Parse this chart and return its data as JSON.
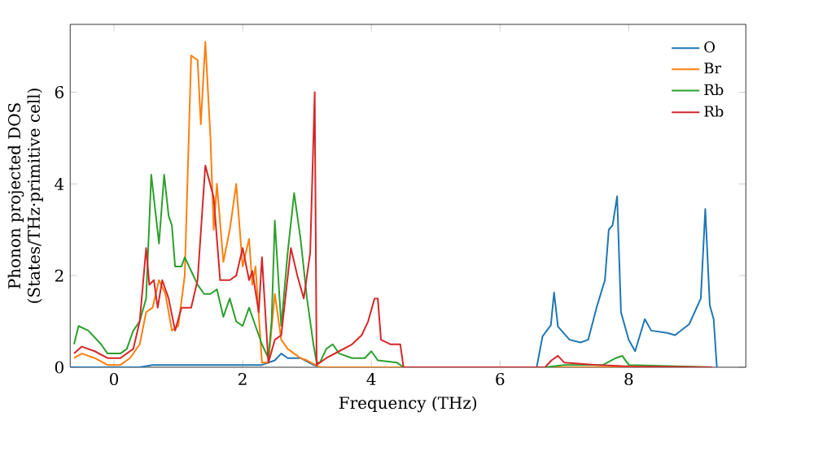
{
  "chart_data": {
    "type": "line",
    "xlabel": "Frequency (THz)",
    "ylabel": "Phonon projected DOS\n(States/THz·primitive cell)",
    "xlim": [
      -0.68,
      9.82
    ],
    "ylim": [
      0,
      7.48
    ],
    "xticks": [
      0,
      2,
      4,
      6,
      8
    ],
    "yticks": [
      0,
      2,
      4,
      6
    ],
    "legend": "top right",
    "grid": false,
    "series": [
      {
        "name": "O",
        "color": "#1f77b4",
        "x": [
          -0.68,
          0.4,
          0.6,
          1.5,
          2.3,
          2.5,
          2.6,
          2.7,
          2.9,
          3.1,
          3.2,
          4.5,
          6.57,
          6.66,
          6.79,
          6.84,
          6.9,
          7.08,
          7.25,
          7.37,
          7.5,
          7.63,
          7.69,
          7.75,
          7.82,
          7.88,
          8.0,
          8.1,
          8.25,
          8.35,
          8.6,
          8.72,
          8.94,
          9.12,
          9.19,
          9.26,
          9.32,
          9.37
        ],
        "values": [
          0,
          0,
          0.05,
          0.05,
          0.05,
          0.15,
          0.3,
          0.2,
          0.2,
          0.05,
          0,
          0,
          0,
          0.67,
          0.92,
          1.63,
          0.89,
          0.6,
          0.54,
          0.6,
          1.3,
          1.9,
          3.0,
          3.1,
          3.73,
          1.2,
          0.6,
          0.35,
          1.05,
          0.8,
          0.75,
          0.7,
          0.94,
          1.5,
          3.45,
          1.35,
          1.05,
          0
        ]
      },
      {
        "name": "Br",
        "color": "#ff7f0e",
        "x": [
          -0.62,
          -0.5,
          -0.3,
          -0.1,
          0.1,
          0.25,
          0.4,
          0.5,
          0.6,
          0.7,
          0.8,
          0.9,
          1.0,
          1.1,
          1.2,
          1.3,
          1.35,
          1.42,
          1.5,
          1.55,
          1.6,
          1.7,
          1.8,
          1.9,
          2.0,
          2.1,
          2.15,
          2.2,
          2.3,
          2.4,
          2.5,
          2.6,
          2.7,
          2.8,
          2.9,
          3.0,
          3.2,
          4.5,
          6.7,
          9.3
        ],
        "values": [
          0.2,
          0.3,
          0.2,
          0.05,
          0.05,
          0.2,
          0.5,
          1.2,
          1.3,
          1.9,
          1.6,
          0.8,
          0.9,
          2.0,
          6.8,
          6.7,
          5.3,
          7.1,
          5.0,
          3.0,
          4.0,
          2.3,
          3.0,
          4.0,
          2.2,
          2.8,
          1.8,
          2.2,
          0.1,
          0.1,
          1.6,
          0.6,
          0.4,
          0.3,
          0.2,
          0.15,
          0,
          0,
          0,
          0
        ]
      },
      {
        "name": "Rb",
        "color": "#2ca02c",
        "x": [
          -0.62,
          -0.55,
          -0.4,
          -0.2,
          -0.1,
          0.1,
          0.2,
          0.3,
          0.4,
          0.5,
          0.58,
          0.7,
          0.78,
          0.85,
          0.9,
          0.95,
          1.05,
          1.1,
          1.2,
          1.3,
          1.4,
          1.5,
          1.6,
          1.7,
          1.8,
          1.9,
          2.0,
          2.1,
          2.2,
          2.3,
          2.4,
          2.45,
          2.5,
          2.6,
          2.7,
          2.8,
          2.9,
          3.0,
          3.1,
          3.15,
          3.2,
          3.3,
          3.4,
          3.5,
          3.7,
          3.9,
          4.0,
          4.1,
          4.4,
          4.5,
          6.7,
          7.0,
          7.6,
          7.8,
          7.9,
          8.0,
          9.3
        ],
        "values": [
          0.5,
          0.9,
          0.8,
          0.5,
          0.3,
          0.3,
          0.4,
          0.8,
          1.0,
          1.5,
          4.2,
          2.7,
          4.2,
          3.3,
          3.1,
          2.2,
          2.2,
          2.4,
          2.1,
          1.8,
          1.6,
          1.6,
          1.7,
          1.1,
          1.5,
          1.0,
          0.9,
          1.3,
          0.9,
          0.5,
          0.2,
          1.0,
          3.2,
          0.9,
          2.5,
          3.8,
          2.8,
          1.5,
          0.5,
          0.1,
          0.1,
          0.4,
          0.5,
          0.3,
          0.2,
          0.2,
          0.35,
          0.15,
          0.1,
          0,
          0,
          0.05,
          0.05,
          0.2,
          0.25,
          0.05,
          0
        ]
      },
      {
        "name": "Rb",
        "color": "#d62728",
        "x": [
          -0.62,
          -0.5,
          -0.3,
          -0.1,
          0.1,
          0.3,
          0.4,
          0.5,
          0.55,
          0.62,
          0.68,
          0.75,
          0.85,
          0.95,
          1.05,
          1.2,
          1.3,
          1.42,
          1.55,
          1.65,
          1.8,
          1.9,
          2.0,
          2.1,
          2.15,
          2.25,
          2.3,
          2.4,
          2.5,
          2.6,
          2.75,
          2.85,
          2.95,
          3.05,
          3.12,
          3.15,
          3.3,
          3.5,
          3.7,
          3.85,
          3.95,
          4.05,
          4.1,
          4.15,
          4.3,
          4.45,
          4.5,
          6.7,
          6.8,
          6.9,
          7.0,
          7.5,
          8.0,
          9.3
        ],
        "values": [
          0.3,
          0.45,
          0.35,
          0.2,
          0.2,
          0.4,
          1.0,
          2.6,
          1.8,
          1.9,
          1.3,
          1.9,
          1.5,
          0.8,
          1.3,
          1.3,
          1.9,
          4.4,
          3.7,
          1.9,
          1.9,
          2.0,
          2.6,
          1.9,
          2.1,
          1.2,
          2.4,
          0.1,
          0.6,
          0.7,
          2.6,
          2.0,
          1.5,
          2.5,
          6.0,
          0.05,
          0.2,
          0.35,
          0.5,
          0.7,
          1.0,
          1.5,
          1.5,
          0.6,
          0.5,
          0.5,
          0,
          0,
          0.15,
          0.25,
          0.1,
          0.05,
          0.02,
          0
        ]
      }
    ]
  }
}
